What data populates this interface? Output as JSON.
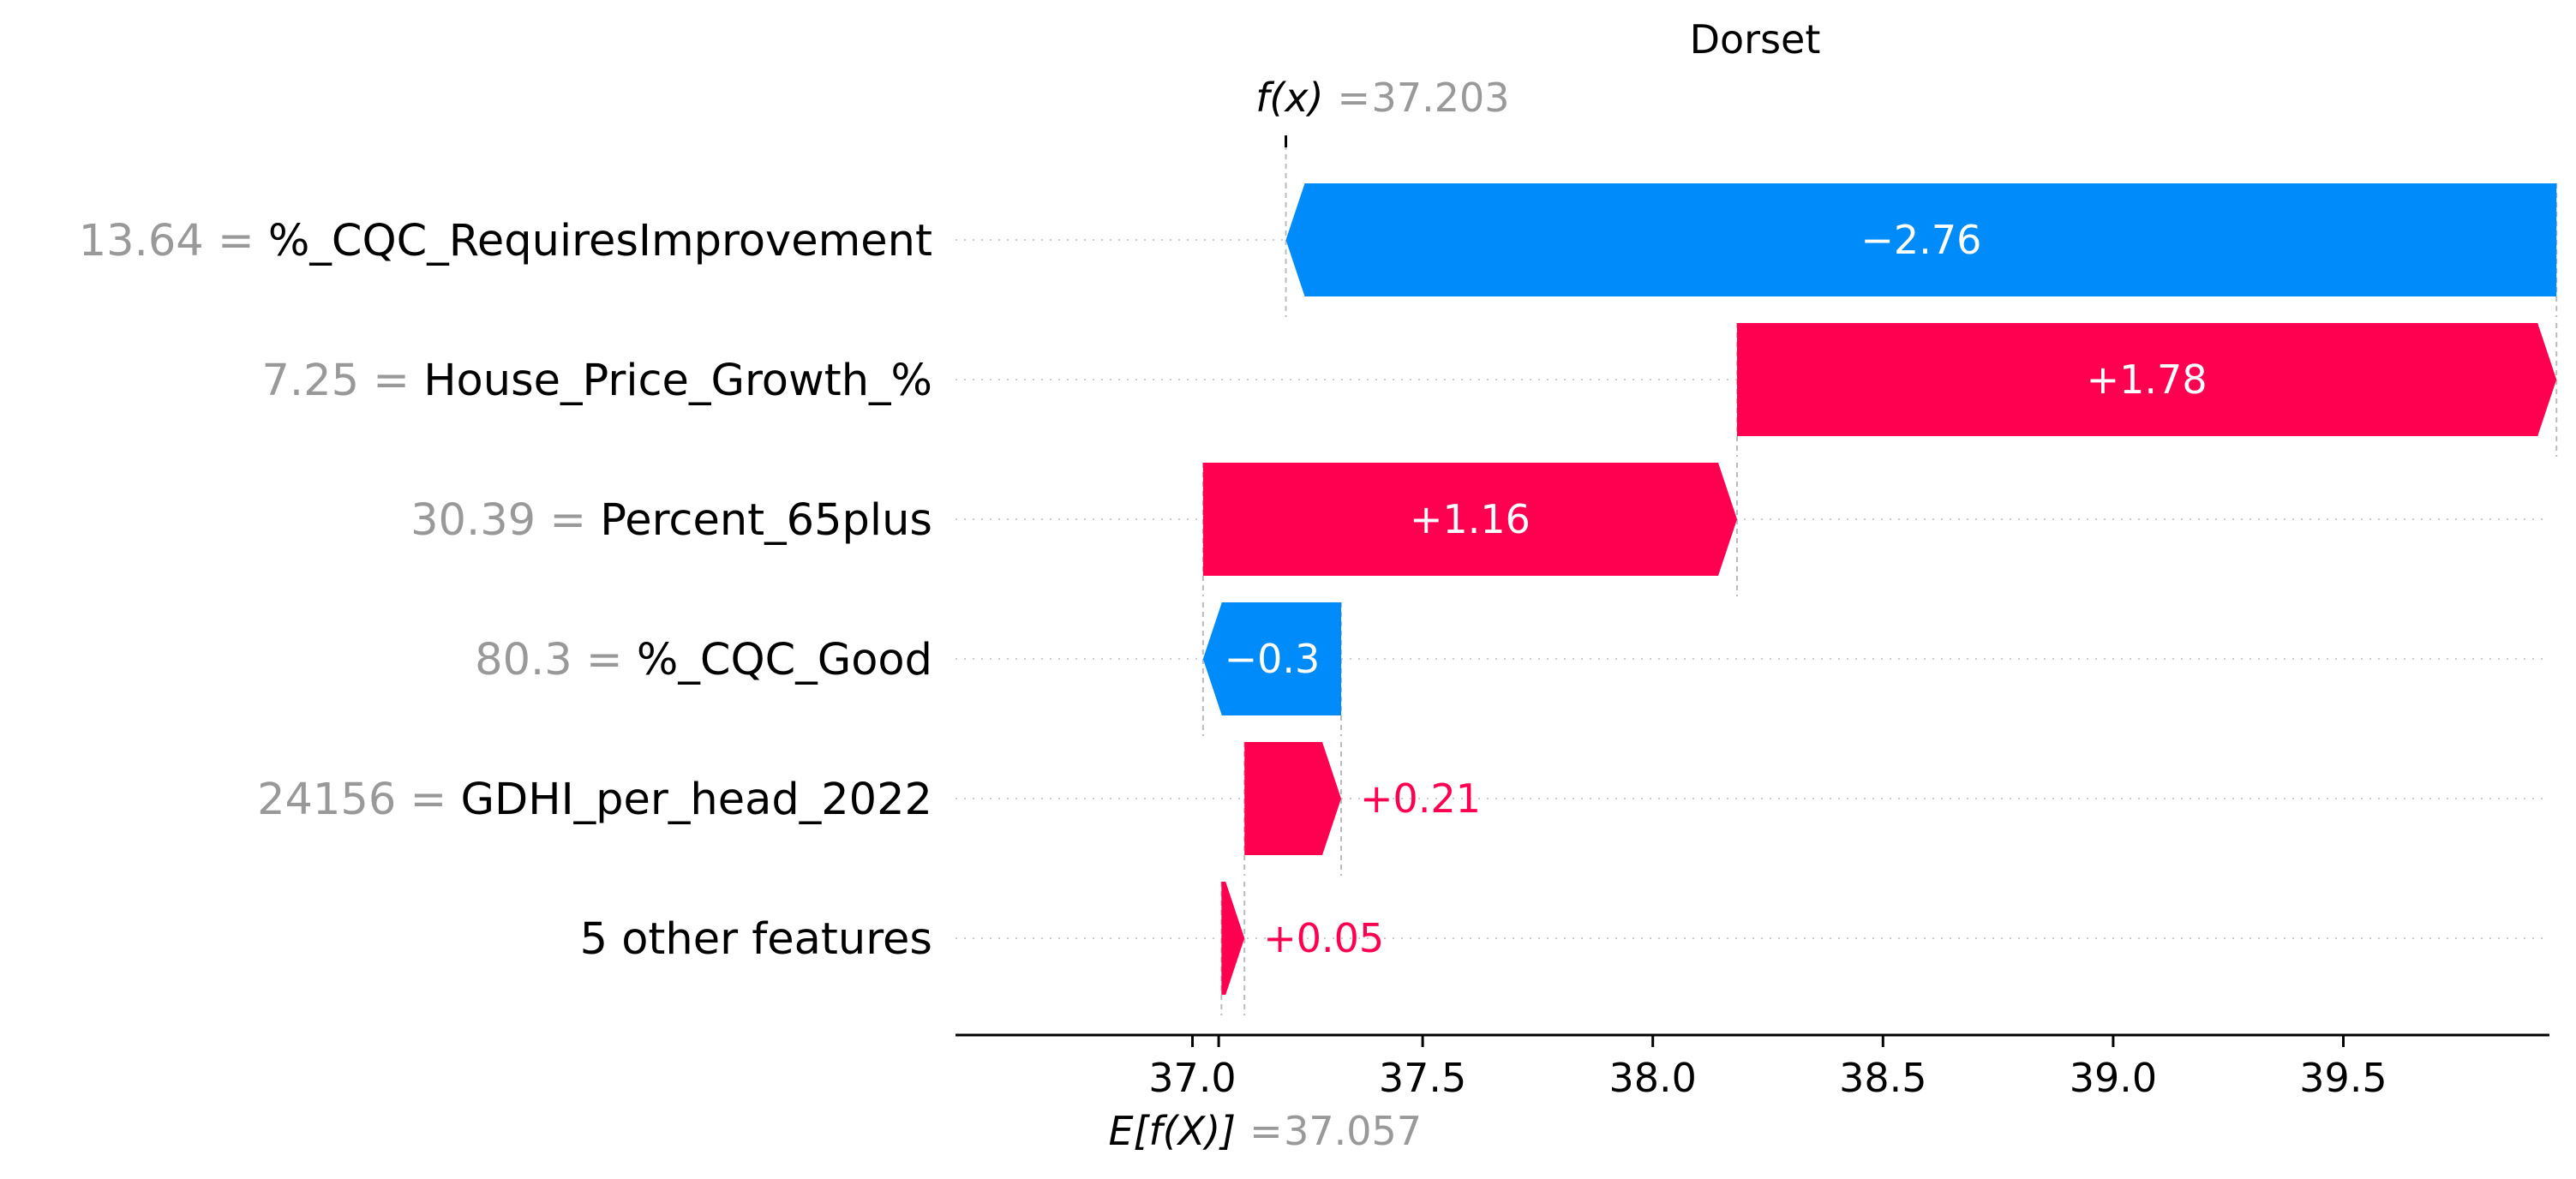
{
  "chart_data": {
    "type": "waterfall",
    "title": "Dorset",
    "fx_label": "f(x)",
    "fx_value": "37.203",
    "fx_numeric": 37.203,
    "base_label": "E[f(X)]",
    "base_value": "37.057",
    "base_numeric": 37.057,
    "xlim": [
      36.6,
      40.1
    ],
    "x_ticks": [
      37.0,
      37.5,
      38.0,
      38.5,
      39.0,
      39.5
    ],
    "x_tick_labels": [
      "37.0",
      "37.5",
      "38.0",
      "38.5",
      "39.0",
      "39.5"
    ],
    "grid": false,
    "colors": {
      "positive": "#ff0051",
      "negative": "#008bfb",
      "value_text": "#999999",
      "axis": "#000000"
    },
    "features": [
      {
        "value": "13.64",
        "name": "%_CQC_RequiresImprovement",
        "contribution": -2.76,
        "label": "−2.76",
        "start": 39.963,
        "end": 37.203
      },
      {
        "value": "7.25",
        "name": "House_Price_Growth_%",
        "contribution": 1.78,
        "label": "+1.78",
        "start": 38.183,
        "end": 39.963
      },
      {
        "value": "30.39",
        "name": "Percent_65plus",
        "contribution": 1.16,
        "label": "+1.16",
        "start": 37.023,
        "end": 38.183
      },
      {
        "value": "80.3",
        "name": "%_CQC_Good",
        "contribution": -0.3,
        "label": "−0.3",
        "start": 37.323,
        "end": 37.023
      },
      {
        "value": "24156",
        "name": "GDHI_per_head_2022",
        "contribution": 0.21,
        "label": "+0.21",
        "start": 37.113,
        "end": 37.323
      },
      {
        "value": "",
        "name": "5 other features",
        "contribution": 0.05,
        "label": "+0.05",
        "start": 37.063,
        "end": 37.113
      }
    ]
  }
}
